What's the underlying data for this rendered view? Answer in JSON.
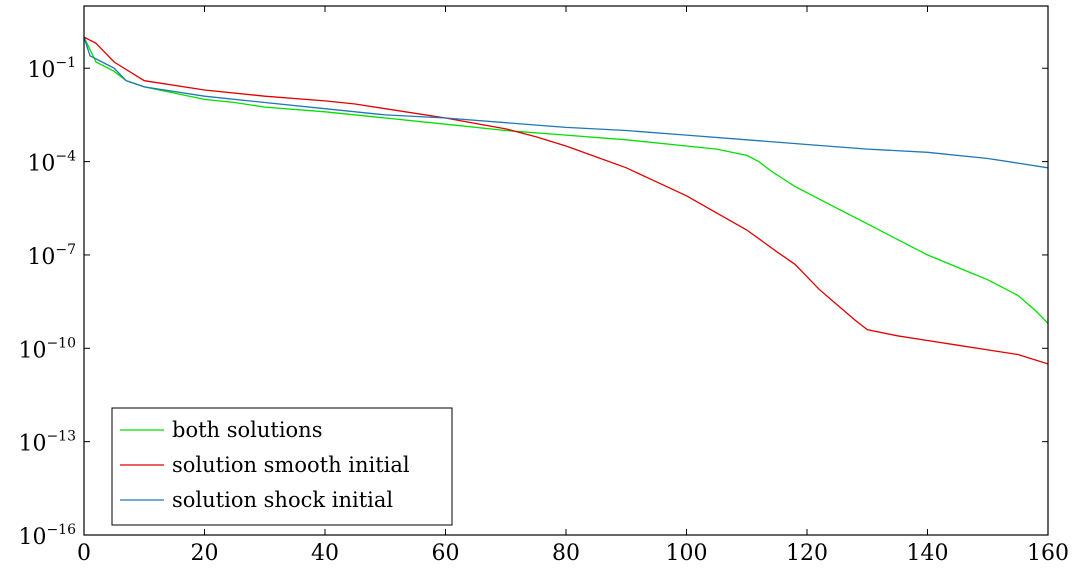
{
  "chart_data": {
    "type": "line",
    "title": "",
    "xlabel": "",
    "ylabel": "",
    "xlim": [
      0,
      160
    ],
    "ylim_log10": [
      -16,
      1
    ],
    "yscale": "log",
    "grid": false,
    "legend_placement": "bottom-left",
    "x_ticks": [
      "0",
      "20",
      "40",
      "60",
      "80",
      "100",
      "120",
      "140",
      "160"
    ],
    "y_ticks": [
      {
        "base": "10",
        "exp": "−1",
        "log10": -1
      },
      {
        "base": "10",
        "exp": "−4",
        "log10": -4
      },
      {
        "base": "10",
        "exp": "−7",
        "log10": -7
      },
      {
        "base": "10",
        "exp": "−10",
        "log10": -10
      },
      {
        "base": "10",
        "exp": "−13",
        "log10": -13
      },
      {
        "base": "10",
        "exp": "−16",
        "log10": -16
      }
    ],
    "series": [
      {
        "name": "both solutions",
        "color": "#00e000",
        "points_log10": [
          [
            0,
            0
          ],
          [
            2,
            -0.8
          ],
          [
            4,
            -1.0
          ],
          [
            5,
            -1.1
          ],
          [
            7,
            -1.4
          ],
          [
            10,
            -1.6
          ],
          [
            15,
            -1.8
          ],
          [
            20,
            -2.0
          ],
          [
            25,
            -2.1
          ],
          [
            30,
            -2.25
          ],
          [
            40,
            -2.4
          ],
          [
            50,
            -2.6
          ],
          [
            60,
            -2.8
          ],
          [
            70,
            -3.0
          ],
          [
            80,
            -3.15
          ],
          [
            90,
            -3.3
          ],
          [
            100,
            -3.5
          ],
          [
            105,
            -3.6
          ],
          [
            110,
            -3.8
          ],
          [
            112,
            -4.0
          ],
          [
            114,
            -4.3
          ],
          [
            118,
            -4.8
          ],
          [
            120,
            -5.0
          ],
          [
            125,
            -5.5
          ],
          [
            130,
            -6.0
          ],
          [
            135,
            -6.5
          ],
          [
            140,
            -7.0
          ],
          [
            145,
            -7.4
          ],
          [
            150,
            -7.8
          ],
          [
            155,
            -8.3
          ],
          [
            158,
            -8.8
          ],
          [
            160,
            -9.2
          ]
        ]
      },
      {
        "name": "solution smooth initial",
        "color": "#e00000",
        "points_log10": [
          [
            0,
            0
          ],
          [
            2,
            -0.2
          ],
          [
            3,
            -0.4
          ],
          [
            5,
            -0.8
          ],
          [
            10,
            -1.4
          ],
          [
            20,
            -1.7
          ],
          [
            30,
            -1.9
          ],
          [
            40,
            -2.05
          ],
          [
            45,
            -2.15
          ],
          [
            50,
            -2.3
          ],
          [
            60,
            -2.6
          ],
          [
            70,
            -2.95
          ],
          [
            75,
            -3.2
          ],
          [
            80,
            -3.5
          ],
          [
            85,
            -3.85
          ],
          [
            90,
            -4.2
          ],
          [
            95,
            -4.65
          ],
          [
            100,
            -5.1
          ],
          [
            105,
            -5.65
          ],
          [
            110,
            -6.2
          ],
          [
            115,
            -6.9
          ],
          [
            118,
            -7.3
          ],
          [
            120,
            -7.7
          ],
          [
            122,
            -8.1
          ],
          [
            125,
            -8.6
          ],
          [
            128,
            -9.1
          ],
          [
            130,
            -9.4
          ],
          [
            135,
            -9.6
          ],
          [
            140,
            -9.75
          ],
          [
            145,
            -9.9
          ],
          [
            150,
            -10.05
          ],
          [
            155,
            -10.2
          ],
          [
            160,
            -10.5
          ]
        ]
      },
      {
        "name": "solution shock initial",
        "color": "#1f77b4",
        "points_log10": [
          [
            0,
            0
          ],
          [
            1,
            -0.6
          ],
          [
            3,
            -0.8
          ],
          [
            5,
            -1.0
          ],
          [
            7,
            -1.4
          ],
          [
            10,
            -1.6
          ],
          [
            20,
            -1.9
          ],
          [
            30,
            -2.1
          ],
          [
            40,
            -2.3
          ],
          [
            50,
            -2.5
          ],
          [
            60,
            -2.6
          ],
          [
            70,
            -2.75
          ],
          [
            80,
            -2.9
          ],
          [
            90,
            -3.0
          ],
          [
            100,
            -3.15
          ],
          [
            110,
            -3.3
          ],
          [
            120,
            -3.45
          ],
          [
            130,
            -3.6
          ],
          [
            140,
            -3.7
          ],
          [
            150,
            -3.9
          ],
          [
            155,
            -4.05
          ],
          [
            160,
            -4.2
          ]
        ]
      }
    ]
  }
}
